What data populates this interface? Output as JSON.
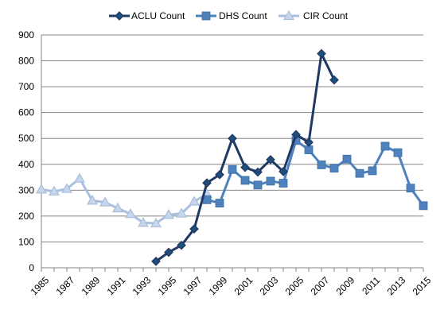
{
  "chart_data": {
    "type": "line",
    "title": "",
    "xlabel": "",
    "ylabel": "",
    "xlim": [
      1985,
      2015
    ],
    "ylim": [
      0,
      900
    ],
    "y_ticks": [
      0,
      100,
      200,
      300,
      400,
      500,
      600,
      700,
      800,
      900
    ],
    "x_ticks": [
      1985,
      1987,
      1989,
      1991,
      1993,
      1995,
      1997,
      1999,
      2001,
      2003,
      2005,
      2007,
      2009,
      2011,
      2013,
      2015
    ],
    "grid": "horizontal",
    "legend": "top",
    "series": [
      {
        "name": "ACLU Count",
        "color": "#1F3864",
        "marker": "diamond",
        "points": [
          [
            1994,
            25
          ],
          [
            1995,
            60
          ],
          [
            1996,
            87
          ],
          [
            1997,
            150
          ],
          [
            1998,
            328
          ],
          [
            1999,
            360
          ],
          [
            2000,
            500
          ],
          [
            2001,
            388
          ],
          [
            2002,
            370
          ],
          [
            2003,
            418
          ],
          [
            2004,
            372
          ],
          [
            2005,
            515
          ],
          [
            2006,
            485
          ],
          [
            2007,
            828
          ],
          [
            2008,
            726
          ]
        ]
      },
      {
        "name": "DHS Count",
        "color": "#4F81BD",
        "marker": "square",
        "points": [
          [
            1998,
            263
          ],
          [
            1999,
            250
          ],
          [
            2000,
            380
          ],
          [
            2001,
            338
          ],
          [
            2002,
            320
          ],
          [
            2003,
            335
          ],
          [
            2004,
            327
          ],
          [
            2005,
            492
          ],
          [
            2006,
            456
          ],
          [
            2007,
            398
          ],
          [
            2008,
            385
          ],
          [
            2009,
            420
          ],
          [
            2010,
            365
          ],
          [
            2011,
            375
          ],
          [
            2012,
            470
          ],
          [
            2013,
            445
          ],
          [
            2014,
            308
          ],
          [
            2015,
            240
          ]
        ]
      },
      {
        "name": "CIR Count",
        "color": "#A9BFDD",
        "marker": "triangle",
        "points": [
          [
            1985,
            303
          ],
          [
            1986,
            295
          ],
          [
            1987,
            305
          ],
          [
            1988,
            345
          ],
          [
            1989,
            260
          ],
          [
            1990,
            253
          ],
          [
            1991,
            230
          ],
          [
            1992,
            208
          ],
          [
            1993,
            174
          ],
          [
            1994,
            172
          ],
          [
            1995,
            205
          ],
          [
            1996,
            210
          ],
          [
            1997,
            256
          ],
          [
            1998,
            285
          ]
        ]
      }
    ]
  }
}
